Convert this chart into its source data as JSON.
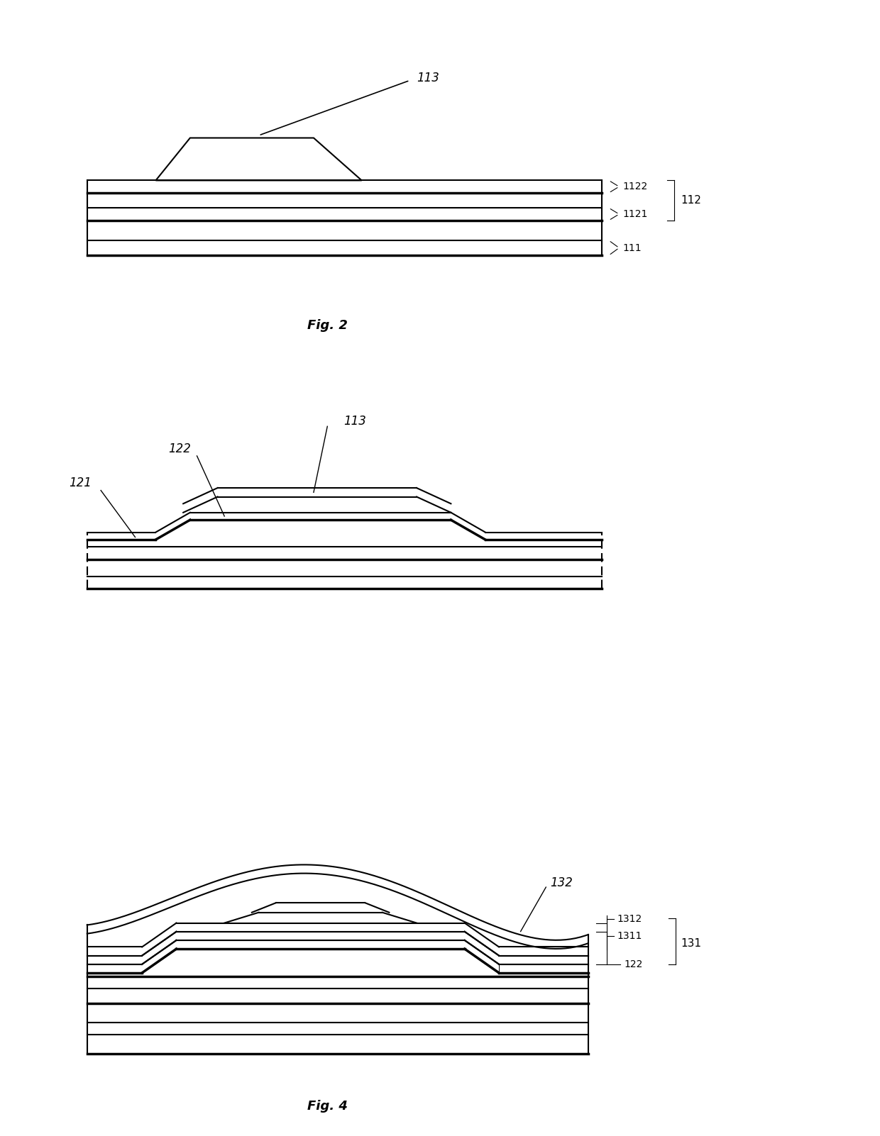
{
  "background_color": "#ffffff",
  "line_color": "#000000",
  "fig_width": 12.4,
  "fig_height": 16.02
}
